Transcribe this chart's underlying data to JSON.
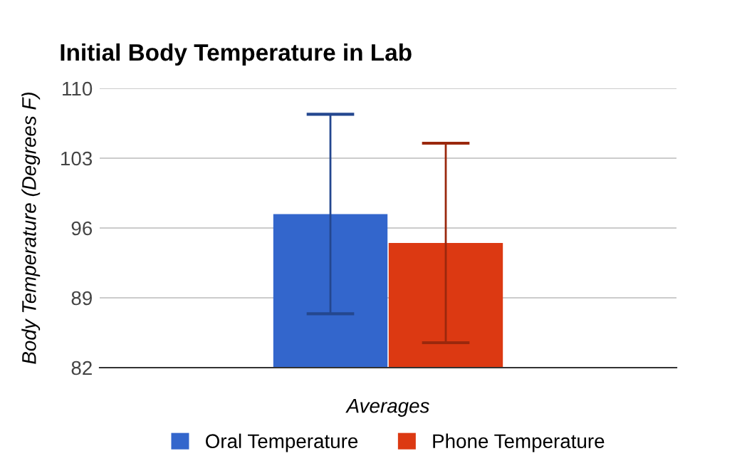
{
  "chart_data": {
    "type": "bar",
    "title": "Initial Body Temperature in Lab",
    "xlabel": "Averages",
    "ylabel": "Body Temperature (Degrees F)",
    "categories": [
      null
    ],
    "series": [
      {
        "name": "Oral Temperature",
        "color": "#3366cc",
        "values": [
          97.4
        ],
        "errors": [
          10
        ]
      },
      {
        "name": "Phone Temperature",
        "color": "#dc3912",
        "values": [
          94.5
        ],
        "errors": [
          10
        ]
      }
    ],
    "ylim": [
      82,
      110
    ],
    "yticks": [
      82,
      89,
      96,
      103,
      110
    ],
    "grid": "y",
    "legend": "bottom"
  }
}
